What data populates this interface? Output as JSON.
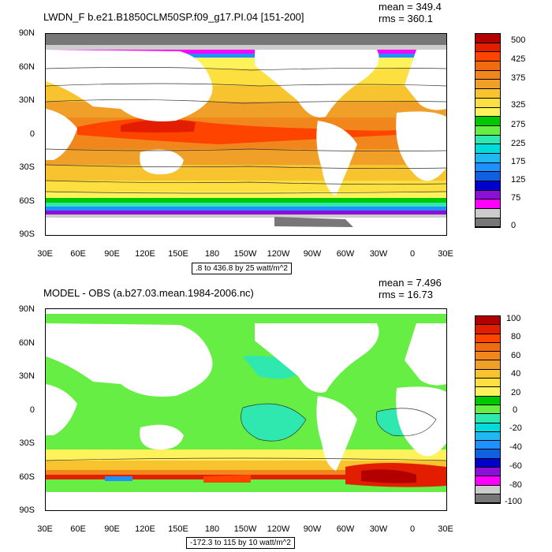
{
  "panel1": {
    "title": "LWDN_F b.e21.B1850CLM50SP.f09_g17.PI.04 [151-200]",
    "mean": "mean = 349.4",
    "rms": "rms = 360.1",
    "info": ".8 to 436.8 by 25 watt/m^2",
    "ylabels": [
      "90N",
      "60N",
      "30N",
      "0",
      "30S",
      "60S",
      "90S"
    ],
    "xlabels": [
      "30E",
      "60E",
      "90E",
      "120E",
      "150E",
      "180",
      "150W",
      "120W",
      "90W",
      "60W",
      "30W",
      "0",
      "30E"
    ],
    "colorbar_labels": [
      "500",
      "425",
      "375",
      "325",
      "275",
      "225",
      "175",
      "125",
      "75",
      "0"
    ],
    "colors": [
      "#b20000",
      "#e21d00",
      "#ff4400",
      "#f06a10",
      "#f0861c",
      "#f0a028",
      "#f7c430",
      "#fde040",
      "#fff25a",
      "#00c800",
      "#66ee44",
      "#2ee8b0",
      "#00dcdc",
      "#20b8f0",
      "#1e90ff",
      "#1060e0",
      "#0000cd",
      "#8a10d8",
      "#ff00ff",
      "#cccccc",
      "#777777"
    ]
  },
  "panel2": {
    "title": "MODEL - OBS (a.b27.03.mean.1984-2006.nc)",
    "mean": "mean = 7.496",
    "rms": "rms = 16.73",
    "info": "-172.3 to 115 by 10 watt/m^2",
    "ylabels": [
      "90N",
      "60N",
      "30N",
      "0",
      "30S",
      "60S",
      "90S"
    ],
    "xlabels": [
      "30E",
      "60E",
      "90E",
      "120E",
      "150E",
      "180",
      "150W",
      "120W",
      "90W",
      "60W",
      "30W",
      "0",
      "30E"
    ],
    "colorbar_labels": [
      "100",
      "80",
      "60",
      "40",
      "20",
      "0",
      "-20",
      "-40",
      "-60",
      "-80",
      "-100"
    ],
    "colors": [
      "#b20000",
      "#e21d00",
      "#ff4400",
      "#f06a10",
      "#f0861c",
      "#f0a028",
      "#f7c430",
      "#fde040",
      "#fff25a",
      "#00c800",
      "#66ee44",
      "#2ee8b0",
      "#00dcdc",
      "#20b8f0",
      "#1e90ff",
      "#1060e0",
      "#0000cd",
      "#8a10d8",
      "#ff00ff",
      "#cccccc",
      "#777777"
    ]
  }
}
